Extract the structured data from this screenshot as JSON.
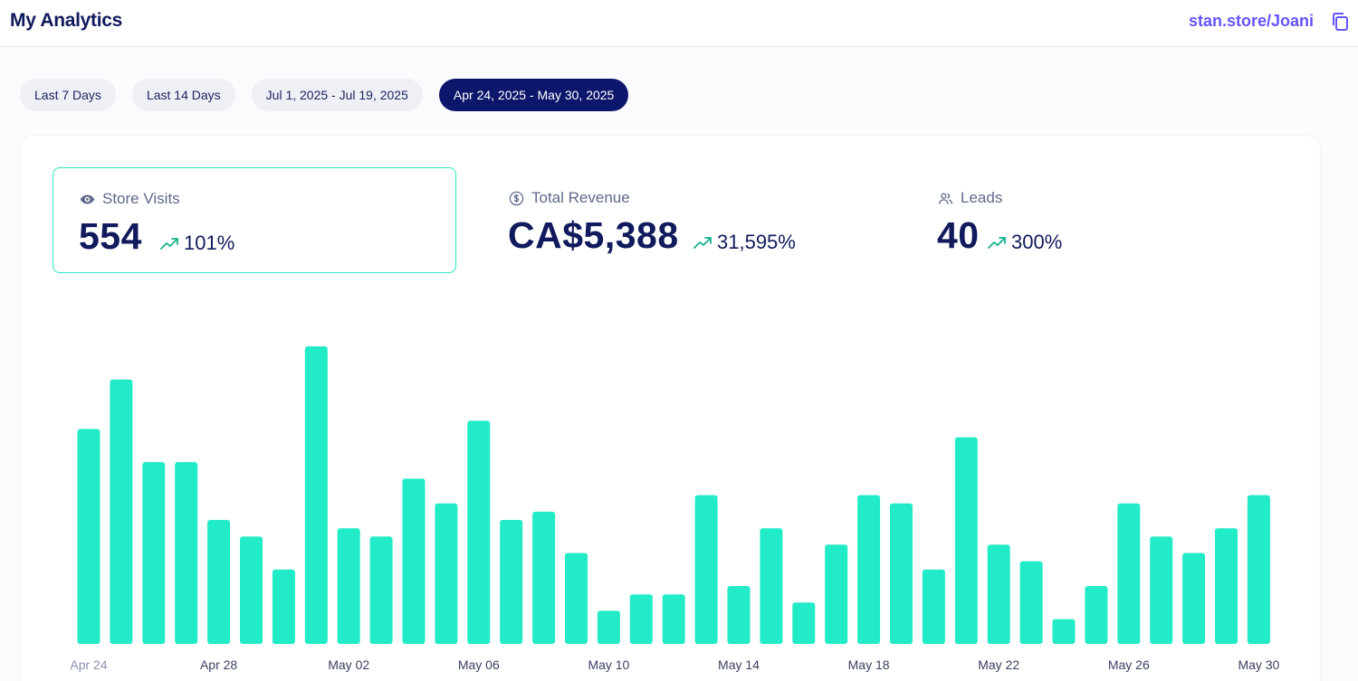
{
  "header": {
    "title": "My Analytics",
    "store_link": "stan.store/Joani"
  },
  "filters": [
    {
      "label": "Last 7 Days",
      "active": false
    },
    {
      "label": "Last 14 Days",
      "active": false
    },
    {
      "label": "Jul 1, 2025 - Jul 19, 2025",
      "active": false
    },
    {
      "label": "Apr 24, 2025 - May 30, 2025",
      "active": true
    }
  ],
  "stats": {
    "visits": {
      "label": "Store Visits",
      "value": "554",
      "change": "101%",
      "icon": "eye-icon"
    },
    "revenue": {
      "label": "Total Revenue",
      "value": "CA$5,388",
      "change": "31,595%",
      "icon": "dollar-circle-icon"
    },
    "leads": {
      "label": "Leads",
      "value": "40",
      "change": "300%",
      "icon": "users-icon"
    }
  },
  "colors": {
    "bar": "#22ebc8",
    "accent": "#6355ff",
    "active_pill": "#0c176b",
    "trend_up": "#16b28e"
  },
  "chart_data": {
    "type": "bar",
    "series": [
      {
        "values": [
          26,
          32,
          22,
          22,
          15,
          13,
          9,
          36,
          14,
          13,
          20,
          17,
          27,
          15,
          16,
          11,
          4,
          6,
          6,
          18,
          7,
          14,
          5,
          12,
          18,
          17,
          9,
          25,
          12,
          10,
          3,
          7,
          17,
          13,
          11,
          14,
          18
        ]
      }
    ],
    "tick_labels": [
      "Apr 24",
      "Apr 28",
      "May 02",
      "May 06",
      "May 10",
      "May 14",
      "May 18",
      "May 22",
      "May 26",
      "May 30"
    ],
    "tick_every": 4,
    "ylim": [
      0,
      36
    ],
    "grid": false,
    "legend": "none"
  }
}
